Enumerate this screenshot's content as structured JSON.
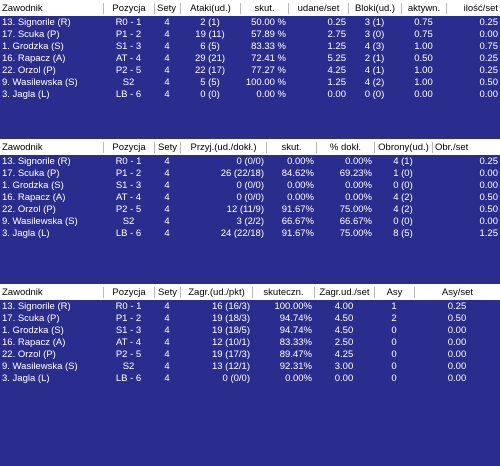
{
  "tables": [
    {
      "headers": [
        "Zawodnik",
        "Pozycja",
        "Sety",
        "Ataki(ud.)",
        "skut.",
        "udane/set",
        "Bloki(ud.)",
        "aktywn.",
        "ilość/set"
      ],
      "rows": [
        [
          "13. Signorile (R)",
          "R0 - 1",
          "4",
          "2 (1)",
          "50.00 %",
          "0.25",
          "3 (1)",
          "0.75",
          "0.25"
        ],
        [
          "17. Scuka (P)",
          "P1 - 2",
          "4",
          "19 (11)",
          "57.89 %",
          "2.75",
          "3 (0)",
          "0.75",
          "0.00"
        ],
        [
          "1. Grodzka (S)",
          "S1 - 3",
          "4",
          "6 (5)",
          "83.33 %",
          "1.25",
          "4 (3)",
          "1.00",
          "0.75"
        ],
        [
          "16. Rapacz (A)",
          "AT - 4",
          "4",
          "29 (21)",
          "72.41 %",
          "5.25",
          "2 (1)",
          "0.50",
          "0.25"
        ],
        [
          "22. Orzol (P)",
          "P2 - 5",
          "4",
          "22 (17)",
          "77.27 %",
          "4.25",
          "4 (1)",
          "1.00",
          "0.25"
        ],
        [
          "9. Wasilewska (S)",
          "S2",
          "4",
          "5 (5)",
          "100.00 %",
          "1.25",
          "4 (2)",
          "1.00",
          "0.50"
        ],
        [
          "3. Jagla (L)",
          "LB - 6",
          "4",
          "0 (0)",
          "0.00 %",
          "0.00",
          "0 (0)",
          "0.00",
          "0.00"
        ]
      ]
    },
    {
      "headers": [
        "Zawodnik",
        "Pozycja",
        "Sety",
        "Przyj.(ud./dokł.)",
        "skut.",
        "% dokł.",
        "Obrony(ud.)",
        "Obr./set"
      ],
      "rows": [
        [
          "13. Signorile (R)",
          "R0 - 1",
          "4",
          "0 (0/0)",
          "0.00%",
          "0.00%",
          "4 (1)",
          "0.25"
        ],
        [
          "17. Scuka (P)",
          "P1 - 2",
          "4",
          "26 (22/18)",
          "84.62%",
          "69.23%",
          "1 (0)",
          "0.00"
        ],
        [
          "1. Grodzka (S)",
          "S1 - 3",
          "4",
          "0 (0/0)",
          "0.00%",
          "0.00%",
          "0 (0)",
          "0.00"
        ],
        [
          "16. Rapacz (A)",
          "AT - 4",
          "4",
          "0 (0/0)",
          "0.00%",
          "0.00%",
          "4 (2)",
          "0.50"
        ],
        [
          "22. Orzol (P)",
          "P2 - 5",
          "4",
          "12 (11/9)",
          "91.67%",
          "75.00%",
          "4 (2)",
          "0.50"
        ],
        [
          "9. Wasilewska (S)",
          "S2",
          "4",
          "3 (2/2)",
          "66.67%",
          "66.67%",
          "0 (0)",
          "0.00"
        ],
        [
          "3. Jagla (L)",
          "LB - 6",
          "4",
          "24 (22/18)",
          "91.67%",
          "75.00%",
          "8 (5)",
          "1.25"
        ]
      ]
    },
    {
      "headers": [
        "Zawodnik",
        "Pozycja",
        "Sety",
        "Zagr.(ud./pkt)",
        "skuteczn.",
        "Zagr.ud./set",
        "Asy",
        "Asy/set"
      ],
      "rows": [
        [
          "13. Signorile (R)",
          "R0 - 1",
          "4",
          "16 (16/3)",
          "100.00%",
          "4.00",
          "1",
          "0.25"
        ],
        [
          "17. Scuka (P)",
          "P1 - 2",
          "4",
          "19 (18/3)",
          "94.74%",
          "4.50",
          "2",
          "0.50"
        ],
        [
          "1. Grodzka (S)",
          "S1 - 3",
          "4",
          "19 (18/5)",
          "94.74%",
          "4.50",
          "0",
          "0.00"
        ],
        [
          "16. Rapacz (A)",
          "AT - 4",
          "4",
          "12 (10/1)",
          "83.33%",
          "2.50",
          "0",
          "0.00"
        ],
        [
          "22. Orzol (P)",
          "P2 - 5",
          "4",
          "19 (17/3)",
          "89.47%",
          "4.25",
          "0",
          "0.00"
        ],
        [
          "9. Wasilewska (S)",
          "S2",
          "4",
          "13 (12/1)",
          "92.31%",
          "3.00",
          "0",
          "0.00"
        ],
        [
          "3. Jagla (L)",
          "LB - 6",
          "4",
          "0 (0/0)",
          "0.00%",
          "0.00",
          "0",
          "0.00"
        ]
      ]
    }
  ]
}
